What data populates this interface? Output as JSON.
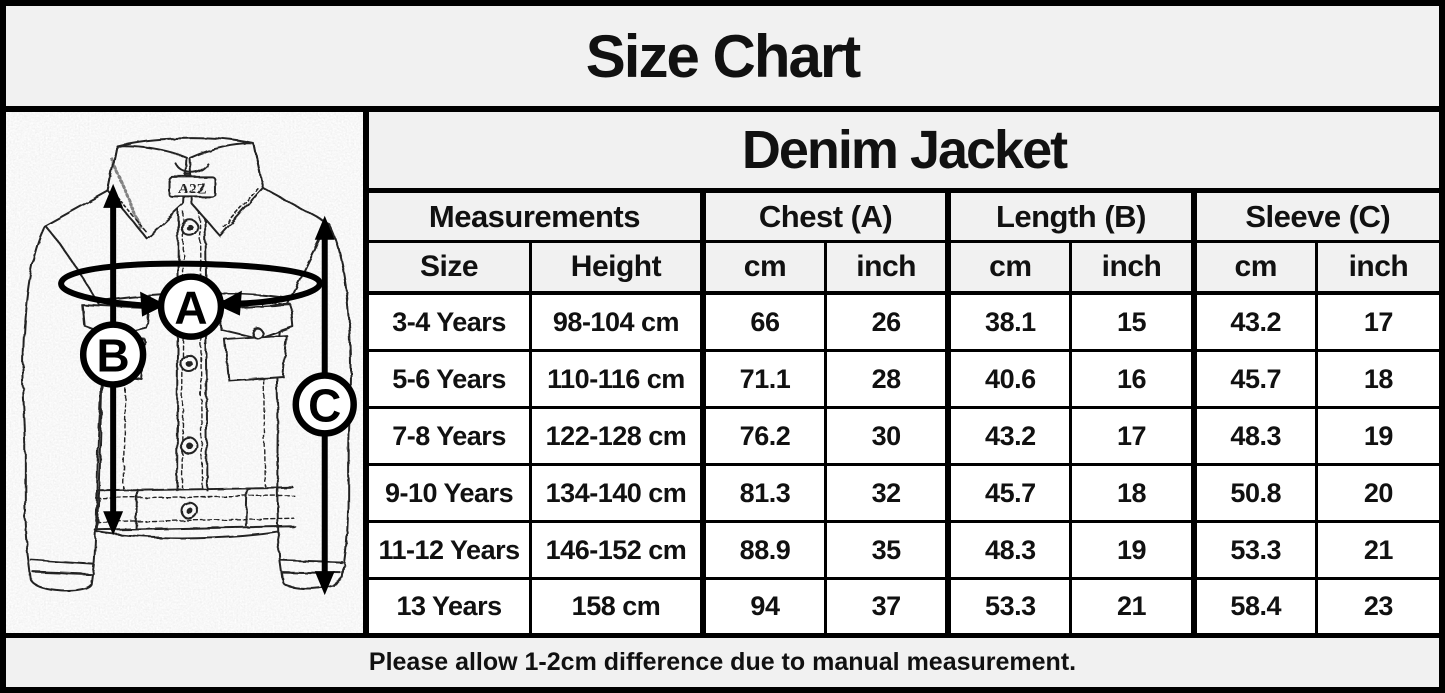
{
  "page": {
    "title": "Size Chart",
    "footer_note": "Please allow 1-2cm difference due to manual measurement."
  },
  "colors": {
    "header_bg": "#f1f1f1",
    "cell_bg": "#ffffff",
    "border": "#000000",
    "text": "#111111"
  },
  "product": {
    "title": "Denim Jacket"
  },
  "diagram": {
    "brand_label": "A2Z",
    "markers": {
      "chest": "A",
      "length": "B",
      "sleeve": "C"
    }
  },
  "table": {
    "group_headers": [
      {
        "label": "Measurements",
        "span": 2
      },
      {
        "label": "Chest (A)",
        "span": 2
      },
      {
        "label": "Length (B)",
        "span": 2
      },
      {
        "label": "Sleeve (C)",
        "span": 2
      }
    ],
    "columns": [
      "Size",
      "Height",
      "cm",
      "inch",
      "cm",
      "inch",
      "cm",
      "inch"
    ],
    "rows": [
      [
        "3-4 Years",
        "98-104 cm",
        "66",
        "26",
        "38.1",
        "15",
        "43.2",
        "17"
      ],
      [
        "5-6 Years",
        "110-116 cm",
        "71.1",
        "28",
        "40.6",
        "16",
        "45.7",
        "18"
      ],
      [
        "7-8 Years",
        "122-128 cm",
        "76.2",
        "30",
        "43.2",
        "17",
        "48.3",
        "19"
      ],
      [
        "9-10 Years",
        "134-140 cm",
        "81.3",
        "32",
        "45.7",
        "18",
        "50.8",
        "20"
      ],
      [
        "11-12 Years",
        "146-152 cm",
        "88.9",
        "35",
        "48.3",
        "19",
        "53.3",
        "21"
      ],
      [
        "13 Years",
        "158 cm",
        "94",
        "37",
        "53.3",
        "21",
        "58.4",
        "23"
      ]
    ]
  },
  "chart_data": {
    "type": "table",
    "title": "Denim Jacket",
    "column_groups": [
      "Measurements",
      "Chest (A)",
      "Length (B)",
      "Sleeve (C)"
    ],
    "columns": [
      "Size",
      "Height",
      "Chest cm",
      "Chest inch",
      "Length cm",
      "Length inch",
      "Sleeve cm",
      "Sleeve inch"
    ],
    "rows": [
      [
        "3-4 Years",
        "98-104 cm",
        66,
        26,
        38.1,
        15,
        43.2,
        17
      ],
      [
        "5-6 Years",
        "110-116 cm",
        71.1,
        28,
        40.6,
        16,
        45.7,
        18
      ],
      [
        "7-8 Years",
        "122-128 cm",
        76.2,
        30,
        43.2,
        17,
        48.3,
        19
      ],
      [
        "9-10 Years",
        "134-140 cm",
        81.3,
        32,
        45.7,
        18,
        50.8,
        20
      ],
      [
        "11-12 Years",
        "146-152 cm",
        88.9,
        35,
        48.3,
        19,
        53.3,
        21
      ],
      [
        "13 Years",
        "158 cm",
        94,
        37,
        53.3,
        21,
        58.4,
        23
      ]
    ]
  }
}
